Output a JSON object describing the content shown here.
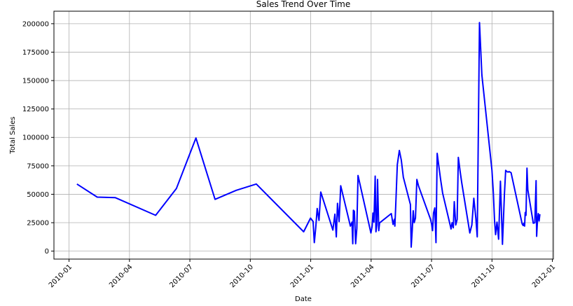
{
  "chart_data": {
    "type": "line",
    "title": "Sales Trend Over Time",
    "xlabel": "Date",
    "ylabel": "Total Sales",
    "grid": true,
    "line_color": "#0000ff",
    "x_tick_labels": [
      "2010-01",
      "2010-04",
      "2010-07",
      "2010-10",
      "2011-01",
      "2011-04",
      "2011-07",
      "2011-10",
      "2012-01"
    ],
    "x_tick_months": [
      0,
      3,
      6,
      9,
      12,
      15,
      18,
      21,
      24
    ],
    "y_tick_labels": [
      "0",
      "25000",
      "50000",
      "75000",
      "100000",
      "125000",
      "150000",
      "175000",
      "200000"
    ],
    "y_ticks": [
      0,
      25000,
      50000,
      75000,
      100000,
      125000,
      150000,
      175000,
      200000
    ],
    "xlim_months": [
      -0.75,
      24.05
    ],
    "ylim": [
      -7000,
      211000
    ],
    "series": [
      {
        "name": "Total Sales",
        "x_months": [
          0.39,
          1.4,
          2.3,
          4.3,
          5.33,
          6.3,
          7.25,
          8.3,
          9.3,
          11.65,
          11.99,
          12.12,
          12.18,
          12.25,
          12.32,
          12.41,
          12.5,
          13.1,
          13.2,
          13.27,
          13.33,
          13.41,
          13.49,
          13.97,
          14.05,
          14.09,
          14.12,
          14.17,
          14.23,
          14.29,
          14.35,
          14.99,
          15.05,
          15.09,
          15.14,
          15.2,
          15.24,
          15.28,
          15.32,
          15.38,
          15.42,
          15.47,
          16.0,
          16.09,
          16.15,
          16.18,
          16.22,
          16.3,
          16.4,
          16.5,
          16.6,
          16.95,
          16.99,
          17.04,
          17.09,
          17.14,
          17.2,
          17.27,
          17.35,
          17.95,
          18.0,
          18.05,
          18.1,
          18.16,
          18.22,
          18.28,
          18.36,
          18.45,
          18.55,
          18.93,
          18.97,
          19.02,
          19.08,
          19.13,
          19.2,
          19.27,
          19.33,
          19.42,
          19.5,
          19.9,
          20.0,
          20.1,
          20.2,
          20.27,
          20.38,
          20.5,
          21.0,
          21.07,
          21.13,
          21.18,
          21.25,
          21.33,
          21.42,
          21.52,
          21.62,
          21.68,
          21.74,
          21.8,
          21.85,
          21.95,
          22.5,
          22.55,
          22.58,
          22.62,
          22.65,
          22.69,
          22.74,
          22.78,
          23.05,
          23.13,
          23.19,
          23.22,
          23.26,
          23.3,
          23.34,
          23.38
        ],
        "values": [
          59000,
          47500,
          47000,
          31500,
          55000,
          99500,
          45500,
          53500,
          59000,
          17000,
          29000,
          26000,
          7500,
          21000,
          37500,
          27000,
          52000,
          18500,
          32500,
          12500,
          42000,
          26000,
          57500,
          22000,
          25500,
          6500,
          36000,
          35000,
          6500,
          20000,
          66500,
          16000,
          22000,
          33500,
          25500,
          66000,
          17000,
          23000,
          63000,
          18000,
          25000,
          25500,
          33000,
          23500,
          28000,
          22000,
          39500,
          76000,
          88500,
          80000,
          65000,
          41000,
          3500,
          18500,
          35500,
          25000,
          29000,
          63000,
          57500,
          28000,
          24000,
          18000,
          33500,
          38000,
          7500,
          86000,
          75000,
          63000,
          51000,
          22500,
          19500,
          25000,
          20500,
          43500,
          23000,
          28000,
          82500,
          70000,
          60000,
          16000,
          23000,
          46500,
          29000,
          12500,
          201000,
          155000,
          71000,
          51000,
          27000,
          14500,
          25500,
          10500,
          61500,
          6000,
          50000,
          71000,
          70000,
          69500,
          70000,
          69000,
          24000,
          22500,
          24500,
          22000,
          34000,
          31500,
          73000,
          54000,
          24500,
          25000,
          62000,
          13000,
          27000,
          33000,
          26500,
          32500
        ]
      }
    ]
  }
}
